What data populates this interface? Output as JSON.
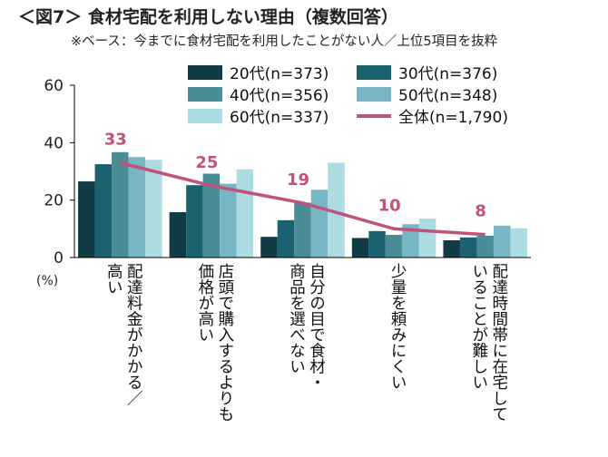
{
  "title": "＜図7＞ 食材宅配を利用しない理由（複数回答）",
  "subtitle": "※ベース：今までに食材宅配を利用したことがない人／上位5項目を抜粋",
  "unit_label": "(%)",
  "colors": {
    "age20": "#113b45",
    "age30": "#1b6270",
    "age40": "#4b8d97",
    "age50": "#78b6c6",
    "age60": "#acdbe2",
    "total": "#c0527a"
  },
  "chart_data": {
    "type": "bar",
    "title": "＜図7＞ 食材宅配を利用しない理由（複数回答）",
    "ylabel": "(%)",
    "ylim": [
      0,
      60
    ],
    "yticks": [
      0,
      20,
      40,
      60
    ],
    "grid": false,
    "legend_position": "top-right",
    "categories": [
      [
        "配達料金がかかる／",
        "高い"
      ],
      [
        "店頭で購入するよりも",
        "価格が高い"
      ],
      [
        "自分の目で食材・",
        "商品を選べない"
      ],
      [
        "少量を頼みにくい"
      ],
      [
        "配達時間帯に在宅して",
        "いることが難しい"
      ]
    ],
    "series": [
      {
        "name": "20代(n=373)",
        "values": [
          26.5,
          15.8,
          7.2,
          6.8,
          6.0
        ]
      },
      {
        "name": "30代(n=376)",
        "values": [
          32.5,
          25.2,
          13.0,
          9.2,
          7.0
        ]
      },
      {
        "name": "40代(n=356)",
        "values": [
          36.7,
          29.2,
          19.1,
          7.9,
          7.6
        ]
      },
      {
        "name": "50代(n=348)",
        "values": [
          35.0,
          25.7,
          23.6,
          11.6,
          11.1
        ]
      },
      {
        "name": "60代(n=337)",
        "values": [
          34.0,
          30.7,
          33.0,
          13.6,
          10.2
        ]
      }
    ],
    "total": {
      "name": "全体(n=1,790)",
      "values": [
        33,
        25,
        19,
        10,
        8
      ]
    }
  }
}
